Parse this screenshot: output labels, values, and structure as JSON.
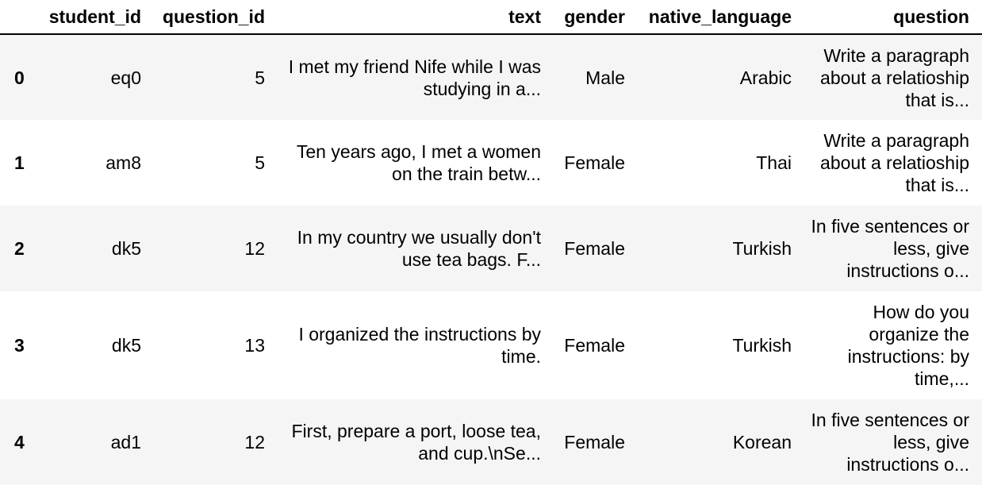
{
  "table": {
    "columns": [
      "",
      "student_id",
      "question_id",
      "text",
      "gender",
      "native_language",
      "question"
    ],
    "rows": [
      {
        "index": "0",
        "student_id": "eq0",
        "question_id": "5",
        "text": "I met my friend Nife while I was studying in a...",
        "gender": "Male",
        "native_language": "Arabic",
        "question": "Write a paragraph about a relatioship that is..."
      },
      {
        "index": "1",
        "student_id": "am8",
        "question_id": "5",
        "text": "Ten years ago, I met a women on the train betw...",
        "gender": "Female",
        "native_language": "Thai",
        "question": "Write a paragraph about a relatioship that is..."
      },
      {
        "index": "2",
        "student_id": "dk5",
        "question_id": "12",
        "text": "In my country we usually don't use tea bags. F...",
        "gender": "Female",
        "native_language": "Turkish",
        "question": "In five sentences or less, give instructions o..."
      },
      {
        "index": "3",
        "student_id": "dk5",
        "question_id": "13",
        "text": "I organized the instructions by time.",
        "gender": "Female",
        "native_language": "Turkish",
        "question": "How do you organize the instructions: by time,..."
      },
      {
        "index": "4",
        "student_id": "ad1",
        "question_id": "12",
        "text": "First, prepare a port, loose tea, and cup.\\nSe...",
        "gender": "Female",
        "native_language": "Korean",
        "question": "In five sentences or less, give instructions o..."
      }
    ]
  }
}
